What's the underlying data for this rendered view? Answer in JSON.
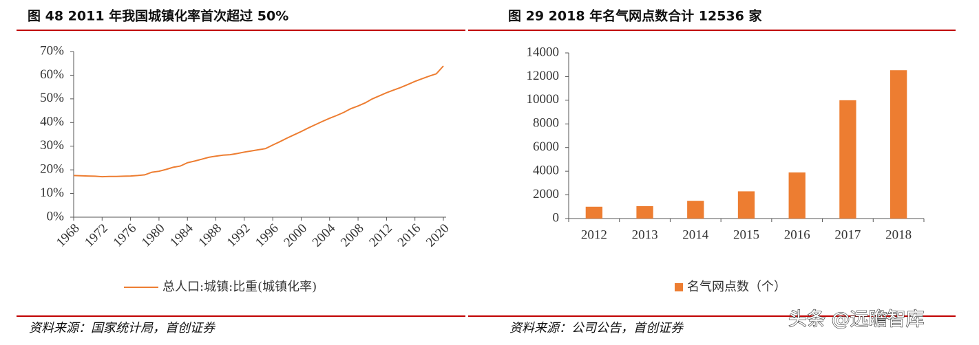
{
  "chart_data": [
    {
      "type": "line",
      "title": "图 48 2011 年我国城镇化率首次超过 50%",
      "source": "资料来源：国家统计局，首创证券",
      "x": [
        1968,
        1969,
        1970,
        1971,
        1972,
        1973,
        1974,
        1975,
        1976,
        1977,
        1978,
        1979,
        1980,
        1981,
        1982,
        1983,
        1984,
        1985,
        1986,
        1987,
        1988,
        1989,
        1990,
        1991,
        1992,
        1993,
        1994,
        1995,
        1996,
        1997,
        1998,
        1999,
        2000,
        2001,
        2002,
        2003,
        2004,
        2005,
        2006,
        2007,
        2008,
        2009,
        2010,
        2011,
        2012,
        2013,
        2014,
        2015,
        2016,
        2017,
        2018,
        2019,
        2020
      ],
      "series": [
        {
          "name": "总人口:城镇:比重(城镇化率)",
          "color": "#ED7D31",
          "values": [
            17.6,
            17.5,
            17.4,
            17.3,
            17.1,
            17.2,
            17.2,
            17.3,
            17.4,
            17.6,
            17.9,
            19.0,
            19.4,
            20.2,
            21.1,
            21.6,
            23.0,
            23.7,
            24.5,
            25.3,
            25.8,
            26.2,
            26.4,
            26.9,
            27.5,
            28.0,
            28.5,
            29.0,
            30.5,
            31.9,
            33.4,
            34.8,
            36.2,
            37.7,
            39.1,
            40.5,
            41.8,
            43.0,
            44.3,
            45.9,
            47.0,
            48.3,
            50.0,
            51.3,
            52.6,
            53.7,
            54.8,
            56.1,
            57.4,
            58.5,
            59.6,
            60.6,
            63.9
          ]
        }
      ],
      "xlim": [
        1968,
        2020
      ],
      "xticks": [
        1968,
        1972,
        1976,
        1980,
        1984,
        1988,
        1992,
        1996,
        2000,
        2004,
        2008,
        2012,
        2016,
        2020
      ],
      "ylim": [
        0,
        70
      ],
      "yticks": [
        {
          "value": 0,
          "label": "0%"
        },
        {
          "value": 10,
          "label": "10%"
        },
        {
          "value": 20,
          "label": "20%"
        },
        {
          "value": 30,
          "label": "30%"
        },
        {
          "value": 40,
          "label": "40%"
        },
        {
          "value": 50,
          "label": "50%"
        },
        {
          "value": 60,
          "label": "60%"
        },
        {
          "value": 70,
          "label": "70%"
        }
      ],
      "grid": false,
      "legend": "bottom"
    },
    {
      "type": "bar",
      "title": "图 29 2018 年名气网点数合计 12536 家",
      "source": "资料来源：公司公告，首创证券",
      "categories": [
        "2012",
        "2013",
        "2014",
        "2015",
        "2016",
        "2017",
        "2018"
      ],
      "series": [
        {
          "name": "名气网点数（个）",
          "color": "#ED7D31",
          "values": [
            1000,
            1050,
            1500,
            2300,
            3900,
            10000,
            12536
          ]
        }
      ],
      "ylim": [
        0,
        14000
      ],
      "yticks": [
        0,
        2000,
        4000,
        6000,
        8000,
        10000,
        12000,
        14000
      ],
      "grid": false,
      "legend": "bottom"
    }
  ],
  "watermark": "头条 @远瞻智库"
}
